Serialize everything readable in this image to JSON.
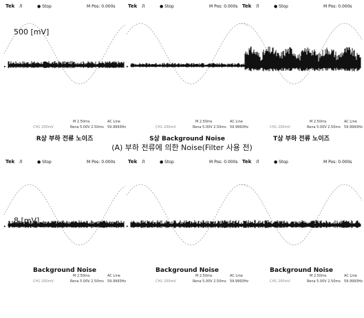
{
  "scope_header": {
    "tek": "Tek",
    "pulse": "Л",
    "trig": "● Stop",
    "pos": "M Pos: 0.000s"
  },
  "scope_footer": {
    "m": "M 2.50ms",
    "ac": "AC Line",
    "ch1": "CH1 200mV",
    "res": "Rena 5.00V 2.50ms",
    "freq": "59.9993Hz"
  },
  "rows": [
    {
      "scale_label": "500 [mV]",
      "group_caption": "(A) 부하 전류에 의한 Noise(Filter 사용 전)",
      "panels": [
        {
          "caption": "R상 부하 전류 노이즈",
          "noise_amplitude": 0.35
        },
        {
          "caption": "S상 Background Noise",
          "noise_amplitude": 0.22
        },
        {
          "caption": "T상 부하 전류 노이즈",
          "noise_amplitude": 0.9
        }
      ]
    },
    {
      "scale_label": "8 [mV]",
      "group_caption": "",
      "panels": [
        {
          "caption": "Background Noise",
          "noise_amplitude": 0.5
        },
        {
          "caption": "Background Noise",
          "noise_amplitude": 0.5
        },
        {
          "caption": "Background Noise",
          "noise_amplitude": 0.5
        }
      ]
    }
  ],
  "colors": {
    "trace": "#111111",
    "sine": "#9a9a9a"
  }
}
